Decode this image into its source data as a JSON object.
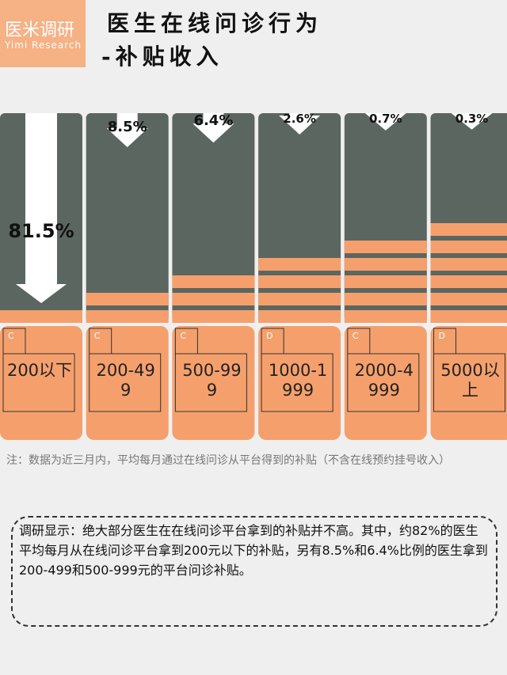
{
  "header": {
    "logo": "医米调研",
    "logo_en": "Yimi Research",
    "title": "医生在线问诊行为",
    "subtitle": "-补贴收入"
  },
  "chart_data": {
    "type": "bar",
    "categories": [
      "200以下",
      "200-499",
      "500-999",
      "1000-1999",
      "2000-4999",
      "5000以上"
    ],
    "tags": [
      "C",
      "C",
      "C",
      "D",
      "C",
      "D"
    ],
    "values": [
      81.5,
      8.5,
      6.4,
      2.6,
      0.7,
      0.3
    ],
    "value_labels": [
      "81.5%",
      "8.5%",
      "6.4%",
      "2.6%",
      "0.7%",
      "0.3%"
    ],
    "color": "#f5a06c"
  },
  "note": "注：数据为近三月内，平均每月通过在线问诊从平台得到的补贴（不含在线预约挂号收入）",
  "summary": "调研显示：绝大部分医生在在线问诊平台拿到的补贴并不高。其中，约82%的医生平均每月从在线问诊平台拿到200元以下的补贴，另有8.5%和6.4%比例的医生拿到200-499和500-999元的平台问诊补贴。"
}
